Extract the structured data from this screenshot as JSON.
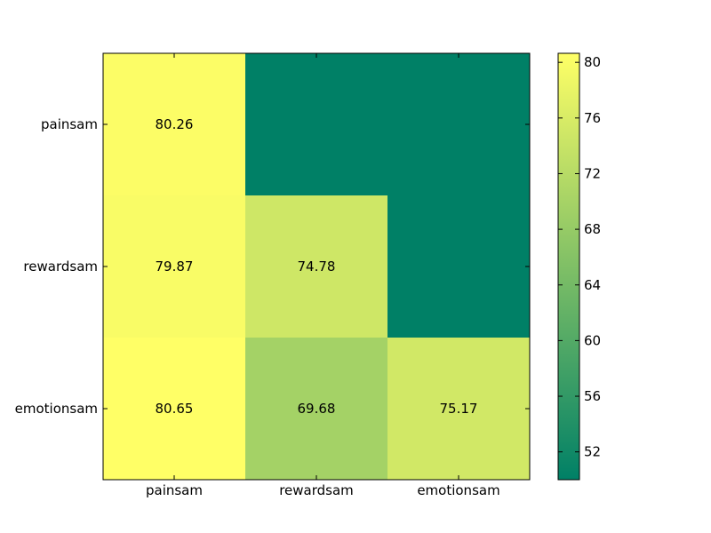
{
  "chart_data": {
    "type": "heatmap",
    "x_categories": [
      "painsam",
      "rewardsam",
      "emotionsam"
    ],
    "y_categories": [
      "painsam",
      "rewardsam",
      "emotionsam"
    ],
    "cells": [
      {
        "row": 0,
        "col": 0,
        "value": 80.26,
        "label": "80.26"
      },
      {
        "row": 0,
        "col": 1,
        "value": 50,
        "label": ""
      },
      {
        "row": 0,
        "col": 2,
        "value": 50,
        "label": ""
      },
      {
        "row": 1,
        "col": 0,
        "value": 79.87,
        "label": "79.87"
      },
      {
        "row": 1,
        "col": 1,
        "value": 74.78,
        "label": "74.78"
      },
      {
        "row": 1,
        "col": 2,
        "value": 50,
        "label": ""
      },
      {
        "row": 2,
        "col": 0,
        "value": 80.65,
        "label": "80.65"
      },
      {
        "row": 2,
        "col": 1,
        "value": 69.68,
        "label": "69.68"
      },
      {
        "row": 2,
        "col": 2,
        "value": 75.17,
        "label": "75.17"
      }
    ],
    "colorbar": {
      "range": [
        50,
        80.65
      ],
      "ticks": [
        52,
        56,
        60,
        64,
        68,
        72,
        76,
        80
      ],
      "colormap": "summer",
      "low_color": "#008066",
      "high_color": "#ffff66"
    },
    "title": "",
    "xlabel": "",
    "ylabel": ""
  }
}
